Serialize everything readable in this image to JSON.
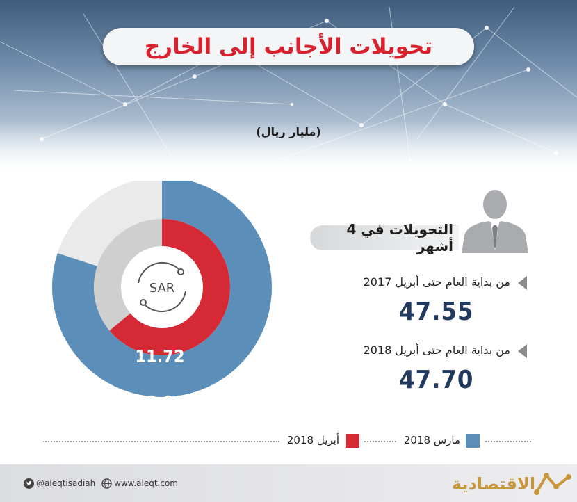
{
  "title": "تحويلات الأجانب إلى الخارج",
  "unit": "(مليار ريال)",
  "center_icon_text": "SAR",
  "subheading": "التحويلات في 4 أشهر",
  "stats": [
    {
      "label": "من بداية العام حتى أبريل 2017",
      "value": "47.55"
    },
    {
      "label": "من بداية العام حتى أبريل 2018",
      "value": "47.70"
    }
  ],
  "legend": [
    {
      "label": "مارس 2018",
      "color": "#5b8fba"
    },
    {
      "label": "أبريل 2018",
      "color": "#d52a36"
    }
  ],
  "footer": {
    "twitter": "@aleqtisadiah",
    "website": "www.aleqt.com",
    "logo_text": "الاقتصادية"
  },
  "colors": {
    "outer_ring": "#5b8fba",
    "inner_ring": "#d52a36",
    "outer_track": "#eaeaea",
    "inner_track": "#cfcfcf",
    "title": "#d7212e",
    "values": "#223a5e"
  },
  "chart_data": {
    "type": "pie",
    "title": "تحويلات الأجانب إلى الخارج",
    "unit": "(مليار ريال)",
    "series": [
      {
        "name": "مارس 2018",
        "value": 12.8,
        "label": "12.80",
        "share": 0.8
      },
      {
        "name": "أبريل 2018",
        "value": 11.72,
        "label": "11.72",
        "share": 0.64
      }
    ]
  }
}
